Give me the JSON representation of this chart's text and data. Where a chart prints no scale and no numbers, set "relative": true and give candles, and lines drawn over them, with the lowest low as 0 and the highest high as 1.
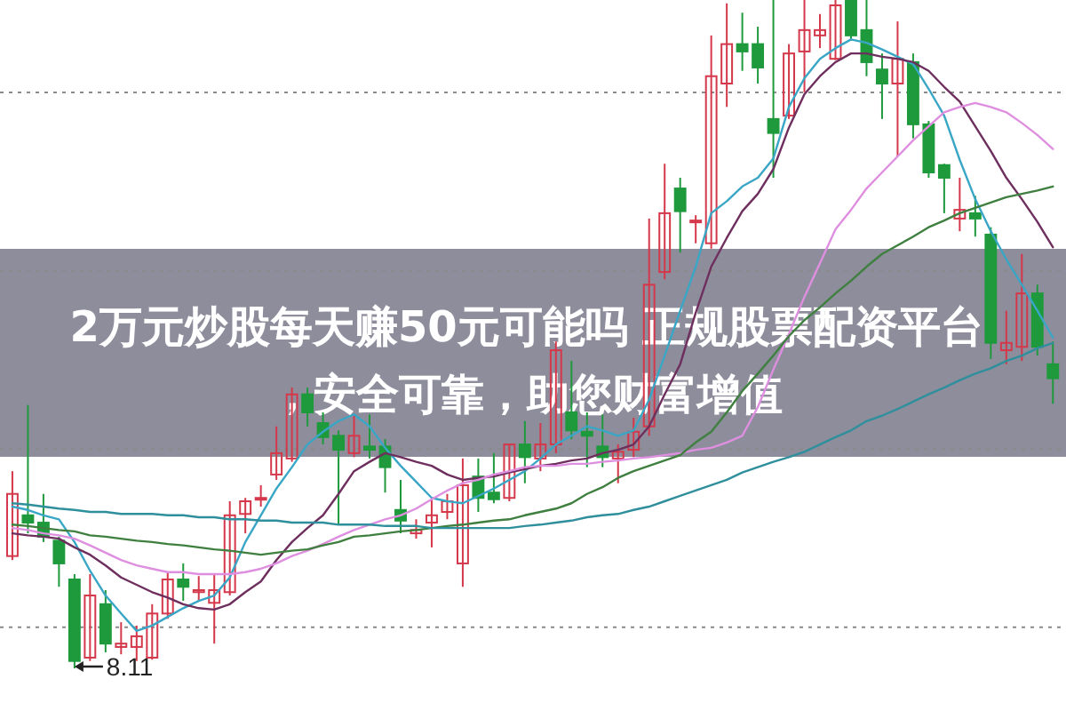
{
  "chart_data": {
    "type": "candlestick",
    "title": "2万元炒股每天赚50元可能吗 正规股票配资平台，安全可靠，助您财富增值",
    "relative": true,
    "grid": true,
    "categories": [
      null,
      null,
      null,
      null,
      null,
      null,
      null,
      null,
      null,
      null,
      null,
      null,
      null,
      null,
      null,
      null,
      null,
      null,
      null,
      null,
      null,
      null,
      null,
      null,
      null,
      null,
      null,
      null,
      null,
      null,
      null,
      null,
      null,
      null,
      null,
      null,
      null,
      null,
      null,
      null,
      null,
      null,
      null,
      null,
      null,
      null,
      null,
      null,
      null,
      null,
      null,
      null,
      null,
      null,
      null,
      null,
      null,
      null,
      null,
      null,
      null,
      null,
      null,
      null,
      null,
      null,
      null,
      null
    ],
    "ohlc": [
      [
        0.168,
        0.295,
        0.162,
        0.261
      ],
      [
        0.229,
        0.394,
        0.202,
        0.218
      ],
      [
        0.218,
        0.261,
        0.189,
        0.197
      ],
      [
        0.191,
        0.197,
        0.122,
        0.157
      ],
      [
        0.133,
        0.141,
        0,
        0.011
      ],
      [
        0.016,
        0.141,
        0.011,
        0.109
      ],
      [
        0.096,
        0.117,
        0.024,
        0.037
      ],
      [
        0.032,
        0.069,
        0.021,
        0.037
      ],
      [
        0.032,
        0.064,
        0.011,
        0.048
      ],
      [
        0.016,
        0.096,
        0.013,
        0.082
      ],
      [
        0.082,
        0.144,
        0.074,
        0.133
      ],
      [
        0.133,
        0.157,
        0.101,
        0.122
      ],
      [
        0.114,
        0.138,
        0.101,
        0.117
      ],
      [
        0.098,
        0.141,
        0.037,
        0.117
      ],
      [
        0.114,
        0.25,
        0.109,
        0.229
      ],
      [
        0.231,
        0.255,
        0.202,
        0.25
      ],
      [
        0.253,
        0.274,
        0.242,
        0.255
      ],
      [
        0.29,
        0.362,
        0.282,
        0.322
      ],
      [
        0.314,
        0.42,
        0.309,
        0.41
      ],
      [
        0.41,
        0.42,
        0.362,
        0.383
      ],
      [
        0.367,
        0.383,
        0.335,
        0.346
      ],
      [
        0.348,
        0.356,
        0.215,
        0.327
      ],
      [
        0.322,
        0.38,
        0.316,
        0.348
      ],
      [
        0.332,
        0.38,
        0.314,
        0.327
      ],
      [
        0.332,
        0.343,
        0.263,
        0.301
      ],
      [
        0.237,
        0.282,
        0.202,
        0.221
      ],
      [
        0.202,
        0.223,
        0.194,
        0.207
      ],
      [
        0.218,
        0.255,
        0.181,
        0.229
      ],
      [
        0.234,
        0.261,
        0.223,
        0.25
      ],
      [
        0.157,
        0.314,
        0.122,
        0.274
      ],
      [
        0.287,
        0.314,
        0.234,
        0.255
      ],
      [
        0.263,
        0.322,
        0.247,
        0.253
      ],
      [
        0.255,
        0.335,
        0.25,
        0.335
      ],
      [
        0.335,
        0.37,
        0.277,
        0.316
      ],
      [
        0.314,
        0.367,
        0.295,
        0.335
      ],
      [
        0.335,
        0.489,
        0.322,
        0.476
      ],
      [
        0.383,
        0.46,
        0.343,
        0.356
      ],
      [
        0.354,
        0.383,
        0.301,
        0.348
      ],
      [
        0.332,
        0.38,
        0.301,
        0.316
      ],
      [
        0.314,
        0.335,
        0.277,
        0.324
      ],
      [
        0.327,
        0.375,
        0.316,
        0.354
      ],
      [
        0.362,
        0.673,
        0.348,
        0.574
      ],
      [
        0.593,
        0.755,
        0.582,
        0.681
      ],
      [
        0.718,
        0.734,
        0.622,
        0.684
      ],
      [
        0.668,
        0.678,
        0.636,
        0.67
      ],
      [
        0.636,
        0.947,
        0.628,
        0.886
      ],
      [
        0.875,
        0.995,
        0.84,
        0.934
      ],
      [
        0.934,
        0.981,
        0.894,
        0.923
      ],
      [
        0.934,
        0.96,
        0.875,
        0.899
      ],
      [
        0.822,
        1,
        0.734,
        0.801
      ],
      [
        0.827,
        0.934,
        0.822,
        0.92
      ],
      [
        0.923,
        1,
        0.862,
        0.955
      ],
      [
        0.947,
        0.979,
        0.928,
        0.955
      ],
      [
        0.912,
        1,
        0.91,
        0.992
      ],
      [
        1,
        1,
        0.939,
        0.947
      ],
      [
        0.955,
        1,
        0.886,
        0.907
      ],
      [
        0.896,
        0.92,
        0.822,
        0.875
      ],
      [
        0.875,
        0.968,
        0.766,
        0.912
      ],
      [
        0.907,
        0.92,
        0.793,
        0.814
      ],
      [
        0.814,
        0.819,
        0.734,
        0.742
      ],
      [
        0.753,
        0.755,
        0.681,
        0.734
      ],
      [
        0.673,
        0.734,
        0.654,
        0.686
      ],
      [
        0.681,
        0.707,
        0.646,
        0.673
      ],
      [
        0.649,
        0.66,
        0.463,
        0.487
      ],
      [
        0.476,
        0.535,
        0.455,
        0.487
      ],
      [
        0.481,
        0.62,
        0.46,
        0.561
      ],
      [
        0.561,
        0.574,
        0.468,
        0.481
      ],
      [
        0.455,
        0.489,
        0.396,
        0.434
      ]
    ],
    "colors": [
      "#d4384a",
      "#1e9a3c",
      "#1e9a3c",
      "#1e9a3c",
      "#1e9a3c",
      "#d4384a",
      "#1e9a3c",
      "#d4384a",
      "#d4384a",
      "#d4384a",
      "#d4384a",
      "#1e9a3c",
      "#d4384a",
      "#d4384a",
      "#d4384a",
      "#d4384a",
      "#d4384a",
      "#d4384a",
      "#d4384a",
      "#1e9a3c",
      "#1e9a3c",
      "#1e9a3c",
      "#d4384a",
      "#1e9a3c",
      "#1e9a3c",
      "#1e9a3c",
      "#d4384a",
      "#d4384a",
      "#d4384a",
      "#d4384a",
      "#1e9a3c",
      "#1e9a3c",
      "#d4384a",
      "#1e9a3c",
      "#d4384a",
      "#d4384a",
      "#1e9a3c",
      "#1e9a3c",
      "#1e9a3c",
      "#d4384a",
      "#d4384a",
      "#d4384a",
      "#d4384a",
      "#1e9a3c",
      "#d4384a",
      "#d4384a",
      "#d4384a",
      "#1e9a3c",
      "#1e9a3c",
      "#1e9a3c",
      "#d4384a",
      "#d4384a",
      "#d4384a",
      "#d4384a",
      "#1e9a3c",
      "#1e9a3c",
      "#1e9a3c",
      "#d4384a",
      "#1e9a3c",
      "#1e9a3c",
      "#1e9a3c",
      "#d4384a",
      "#1e9a3c",
      "#1e9a3c",
      "#d4384a",
      "#d4384a",
      "#1e9a3c",
      "#1e9a3c"
    ],
    "series": [
      {
        "type": "line",
        "color": "#3aa6c6",
        "values": [
          0.242,
          0.237,
          0.229,
          0.223,
          0.189,
          0.146,
          0.109,
          0.082,
          0.056,
          0.064,
          0.077,
          0.09,
          0.101,
          0.109,
          0.136,
          0.189,
          0.229,
          0.269,
          0.301,
          0.335,
          0.354,
          0.37,
          0.38,
          0.362,
          0.33,
          0.303,
          0.279,
          0.255,
          0.25,
          0.247,
          0.258,
          0.269,
          0.282,
          0.295,
          0.314,
          0.335,
          0.348,
          0.362,
          0.356,
          0.348,
          0.356,
          0.402,
          0.468,
          0.535,
          0.601,
          0.681,
          0.699,
          0.721,
          0.734,
          0.763,
          0.84,
          0.883,
          0.912,
          0.928,
          0.941,
          0.936,
          0.926,
          0.915,
          0.904,
          0.867,
          0.827,
          0.761,
          0.702,
          0.654,
          0.612,
          0.574,
          0.535,
          0.495
        ]
      },
      {
        "type": "line",
        "color": "#6e2f5e",
        "values": [
          0.202,
          0.199,
          0.197,
          0.194,
          0.181,
          0.17,
          0.154,
          0.136,
          0.125,
          0.114,
          0.106,
          0.096,
          0.09,
          0.088,
          0.096,
          0.114,
          0.13,
          0.162,
          0.189,
          0.21,
          0.229,
          0.261,
          0.295,
          0.309,
          0.322,
          0.316,
          0.309,
          0.303,
          0.29,
          0.282,
          0.285,
          0.287,
          0.293,
          0.298,
          0.303,
          0.306,
          0.311,
          0.314,
          0.322,
          0.327,
          0.335,
          0.362,
          0.41,
          0.455,
          0.532,
          0.601,
          0.644,
          0.684,
          0.71,
          0.747,
          0.809,
          0.859,
          0.886,
          0.907,
          0.92,
          0.92,
          0.915,
          0.912,
          0.907,
          0.894,
          0.87,
          0.848,
          0.811,
          0.774,
          0.734,
          0.702,
          0.668,
          0.63
        ]
      },
      {
        "type": "line",
        "color": "#df8fe0",
        "values": [
          0.21,
          0.207,
          0.202,
          0.199,
          0.194,
          0.184,
          0.173,
          0.162,
          0.154,
          0.149,
          0.144,
          0.144,
          0.141,
          0.141,
          0.141,
          0.144,
          0.149,
          0.157,
          0.168,
          0.176,
          0.186,
          0.197,
          0.207,
          0.215,
          0.223,
          0.229,
          0.239,
          0.253,
          0.266,
          0.277,
          0.282,
          0.29,
          0.295,
          0.301,
          0.303,
          0.303,
          0.306,
          0.306,
          0.309,
          0.311,
          0.314,
          0.316,
          0.319,
          0.322,
          0.327,
          0.33,
          0.338,
          0.348,
          0.391,
          0.447,
          0.5,
          0.556,
          0.606,
          0.657,
          0.686,
          0.718,
          0.742,
          0.766,
          0.79,
          0.811,
          0.832,
          0.84,
          0.846,
          0.84,
          0.832,
          0.816,
          0.798,
          0.777
        ]
      },
      {
        "type": "line",
        "color": "#3f7f3f",
        "values": [
          0.215,
          0.213,
          0.21,
          0.207,
          0.205,
          0.199,
          0.197,
          0.194,
          0.191,
          0.189,
          0.186,
          0.184,
          0.181,
          0.178,
          0.176,
          0.173,
          0.17,
          0.173,
          0.176,
          0.178,
          0.184,
          0.189,
          0.197,
          0.199,
          0.202,
          0.205,
          0.207,
          0.21,
          0.213,
          0.215,
          0.218,
          0.221,
          0.223,
          0.229,
          0.234,
          0.239,
          0.247,
          0.261,
          0.271,
          0.285,
          0.295,
          0.303,
          0.311,
          0.319,
          0.338,
          0.354,
          0.383,
          0.415,
          0.441,
          0.468,
          0.497,
          0.521,
          0.54,
          0.561,
          0.58,
          0.601,
          0.62,
          0.633,
          0.646,
          0.66,
          0.67,
          0.681,
          0.689,
          0.697,
          0.705,
          0.71,
          0.715,
          0.721
        ]
      },
      {
        "type": "line",
        "color": "#2f8f9c",
        "values": [
          0.247,
          0.245,
          0.242,
          0.239,
          0.237,
          0.234,
          0.234,
          0.231,
          0.231,
          0.231,
          0.229,
          0.229,
          0.226,
          0.226,
          0.223,
          0.223,
          0.221,
          0.221,
          0.218,
          0.218,
          0.218,
          0.215,
          0.215,
          0.215,
          0.213,
          0.213,
          0.213,
          0.21,
          0.21,
          0.21,
          0.21,
          0.21,
          0.21,
          0.213,
          0.215,
          0.218,
          0.221,
          0.226,
          0.229,
          0.231,
          0.237,
          0.242,
          0.25,
          0.258,
          0.266,
          0.274,
          0.282,
          0.293,
          0.301,
          0.309,
          0.316,
          0.324,
          0.335,
          0.346,
          0.356,
          0.37,
          0.378,
          0.388,
          0.399,
          0.41,
          0.42,
          0.431,
          0.441,
          0.449,
          0.46,
          0.468,
          0.479,
          0.487
        ]
      }
    ],
    "annotations": [
      "8.11"
    ]
  }
}
